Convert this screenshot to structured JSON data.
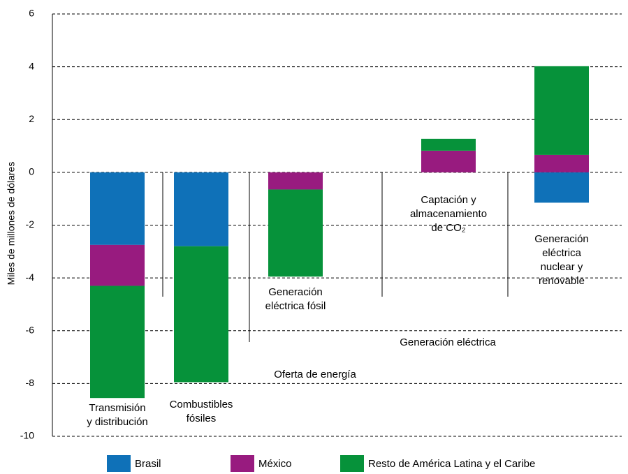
{
  "chart_data": {
    "type": "bar",
    "stacked": true,
    "y_label": "Miles de millones de dólares",
    "categories": [
      "Transmisión\ny distribución",
      "Combustibles\nfósiles",
      "Generación\neléctrica fósil",
      "Captación y\nalmacenamiento\nde CO₂",
      "Generación eléctrica\nnuclear y renovable"
    ],
    "series": [
      {
        "name": "Brasil",
        "color": "#0f71b8",
        "values": [
          -2.75,
          -2.8,
          0,
          0,
          -1.15
        ]
      },
      {
        "name": "México",
        "color": "#981b7f",
        "values": [
          -1.55,
          0,
          -0.65,
          0.82,
          0.66
        ]
      },
      {
        "name": "Resto de América Latina y el Caribe",
        "color": "#06923a",
        "values": [
          -4.25,
          -5.15,
          -3.3,
          0.45,
          3.36
        ]
      }
    ],
    "annotations": [
      "Oferta de energía",
      "Generación eléctrica"
    ],
    "ylim": [
      -10,
      6
    ],
    "yticks": [
      -10,
      -8,
      -6,
      -4,
      -2,
      0,
      2,
      4,
      6
    ],
    "grid": true
  }
}
